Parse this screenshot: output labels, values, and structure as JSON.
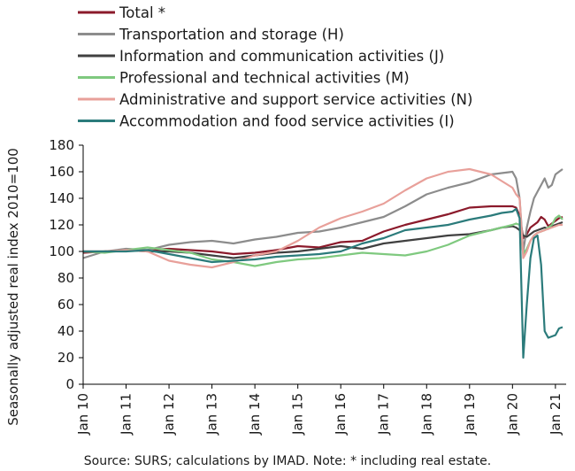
{
  "chart_data": {
    "type": "line",
    "ylabel": "Seasonally adjusted real index 2010=100",
    "ylim": [
      0,
      180
    ],
    "yticks": [
      0,
      20,
      40,
      60,
      80,
      100,
      120,
      140,
      160,
      180
    ],
    "x_start_year": 2010,
    "xticks": [
      "Jan 10",
      "Jan 11",
      "Jan 12",
      "Jan 13",
      "Jan 14",
      "Jan 15",
      "Jan 16",
      "Jan 17",
      "Jan 18",
      "Jan 19",
      "Jan 20",
      "Jan 21"
    ],
    "x_months": [
      "2010-01",
      "2010-07",
      "2011-01",
      "2011-07",
      "2012-01",
      "2012-07",
      "2013-01",
      "2013-07",
      "2014-01",
      "2014-07",
      "2015-01",
      "2015-07",
      "2016-01",
      "2016-07",
      "2017-01",
      "2017-07",
      "2018-01",
      "2018-07",
      "2019-01",
      "2019-07",
      "2019-10",
      "2020-01",
      "2020-02",
      "2020-03",
      "2020-04",
      "2020-05",
      "2020-06",
      "2020-07",
      "2020-08",
      "2020-09",
      "2020-10",
      "2020-11",
      "2020-12",
      "2021-01",
      "2021-02",
      "2021-03"
    ],
    "grid": false,
    "legend_position": "top-left",
    "series": [
      {
        "name": "Total *",
        "color": "#8b1a2b",
        "values": [
          99,
          100,
          101,
          101,
          102,
          101,
          100,
          98,
          99,
          101,
          104,
          103,
          107,
          108,
          115,
          120,
          124,
          128,
          133,
          134,
          134,
          134,
          133,
          127,
          110,
          113,
          118,
          120,
          122,
          126,
          124,
          119,
          121,
          123,
          125,
          126
        ]
      },
      {
        "name": "Transportation and storage (H)",
        "color": "#8c8c8c",
        "values": [
          95,
          100,
          102,
          101,
          105,
          107,
          108,
          106,
          109,
          111,
          114,
          115,
          118,
          122,
          126,
          134,
          143,
          148,
          152,
          158,
          159,
          160,
          155,
          140,
          100,
          118,
          130,
          140,
          145,
          150,
          155,
          148,
          150,
          158,
          160,
          162
        ]
      },
      {
        "name": "Information and communication activities (J)",
        "color": "#404040",
        "values": [
          100,
          100,
          101,
          100,
          100,
          99,
          97,
          95,
          97,
          99,
          100,
          102,
          104,
          102,
          106,
          108,
          110,
          112,
          113,
          116,
          118,
          119,
          118,
          116,
          112,
          111,
          113,
          115,
          116,
          117,
          118,
          117,
          119,
          120,
          121,
          122
        ]
      },
      {
        "name": "Professional and technical activities (M)",
        "color": "#7fc97f",
        "values": [
          100,
          99,
          101,
          103,
          101,
          99,
          94,
          92,
          89,
          92,
          94,
          95,
          97,
          99,
          98,
          97,
          100,
          105,
          112,
          116,
          118,
          120,
          121,
          120,
          98,
          102,
          108,
          112,
          114,
          115,
          116,
          118,
          120,
          125,
          127,
          124
        ]
      },
      {
        "name": "Administrative and support service activities (N)",
        "color": "#e8a09a",
        "values": [
          100,
          100,
          101,
          100,
          93,
          90,
          88,
          92,
          97,
          100,
          108,
          118,
          125,
          130,
          136,
          146,
          155,
          160,
          162,
          158,
          153,
          148,
          143,
          140,
          95,
          100,
          108,
          112,
          114,
          115,
          116,
          117,
          118,
          119,
          120,
          120
        ]
      },
      {
        "name": "Accommodation and food service activities (I)",
        "color": "#2b7b7b",
        "values": [
          100,
          100,
          100,
          101,
          98,
          95,
          92,
          93,
          94,
          96,
          97,
          98,
          100,
          106,
          110,
          116,
          118,
          120,
          124,
          127,
          129,
          130,
          132,
          125,
          20,
          60,
          95,
          110,
          112,
          90,
          40,
          35,
          36,
          37,
          42,
          43
        ]
      }
    ]
  },
  "footer": {
    "source_note": "Source:  SURS; calculations by IMAD. Note: * including real estate."
  }
}
